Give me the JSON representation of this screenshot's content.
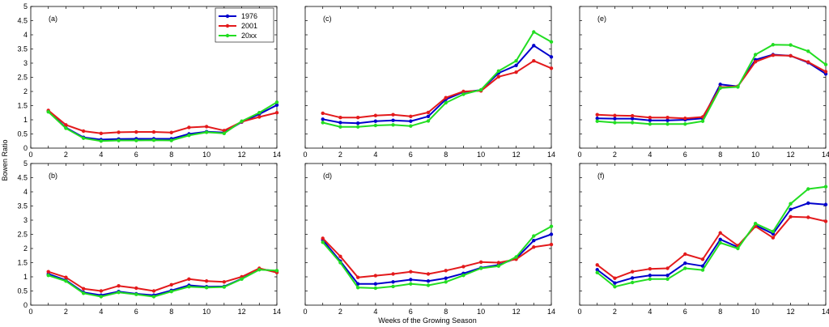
{
  "chart_data": {
    "type": "line",
    "ylabel": "Bowen Ratio",
    "xlabel": "Weeks of the Growing Season",
    "xlim": [
      0,
      14
    ],
    "ylim": [
      0,
      5
    ],
    "xticks": [
      "0",
      "2",
      "4",
      "6",
      "8",
      "10",
      "12",
      "14"
    ],
    "yticks": [
      "0",
      "0.5",
      "1",
      "1.5",
      "2",
      "2.5",
      "3",
      "3.5",
      "4",
      "4.5",
      "5"
    ],
    "legend_position": "top-right of panel (a)",
    "series_style": [
      {
        "name": "1976",
        "color": "#0000cc"
      },
      {
        "name": "2001",
        "color": "#e31a1c"
      },
      {
        "name": "20xx",
        "color": "#22dd22"
      }
    ],
    "x": [
      1,
      2,
      3,
      4,
      5,
      6,
      7,
      8,
      9,
      10,
      11,
      12,
      13,
      14
    ],
    "panels": [
      {
        "label": "(a)",
        "series": [
          {
            "name": "1976",
            "values": [
              1.3,
              0.72,
              0.38,
              0.3,
              0.32,
              0.33,
              0.33,
              0.33,
              0.5,
              0.58,
              0.55,
              0.92,
              1.2,
              1.52
            ]
          },
          {
            "name": "2001",
            "values": [
              1.33,
              0.82,
              0.6,
              0.52,
              0.56,
              0.57,
              0.57,
              0.55,
              0.73,
              0.76,
              0.62,
              0.93,
              1.1,
              1.25
            ]
          },
          {
            "name": "20xx",
            "values": [
              1.28,
              0.7,
              0.35,
              0.25,
              0.27,
              0.27,
              0.28,
              0.27,
              0.45,
              0.56,
              0.52,
              0.95,
              1.25,
              1.62
            ]
          }
        ]
      },
      {
        "label": "(c)",
        "series": [
          {
            "name": "1976",
            "values": [
              1.02,
              0.9,
              0.88,
              0.95,
              0.98,
              0.95,
              1.12,
              1.72,
              1.98,
              2.05,
              2.65,
              2.92,
              3.62,
              3.22
            ]
          },
          {
            "name": "2001",
            "values": [
              1.23,
              1.08,
              1.08,
              1.15,
              1.18,
              1.12,
              1.26,
              1.78,
              2.0,
              2.02,
              2.52,
              2.68,
              3.08,
              2.82
            ]
          },
          {
            "name": "20xx",
            "values": [
              0.9,
              0.75,
              0.75,
              0.8,
              0.82,
              0.78,
              0.96,
              1.6,
              1.9,
              2.06,
              2.72,
              3.08,
              4.1,
              3.75
            ]
          }
        ]
      },
      {
        "label": "(e)",
        "series": [
          {
            "name": "1976",
            "values": [
              1.05,
              1.04,
              1.04,
              0.98,
              0.98,
              1.0,
              1.05,
              2.25,
              2.18,
              3.12,
              3.3,
              3.26,
              3.02,
              2.62
            ]
          },
          {
            "name": "2001",
            "values": [
              1.18,
              1.15,
              1.14,
              1.08,
              1.08,
              1.05,
              1.1,
              2.15,
              2.18,
              3.05,
              3.28,
              3.26,
              3.04,
              2.7
            ]
          },
          {
            "name": "20xx",
            "values": [
              0.95,
              0.9,
              0.9,
              0.85,
              0.85,
              0.85,
              0.95,
              2.12,
              2.16,
              3.3,
              3.65,
              3.64,
              3.42,
              2.95
            ]
          }
        ]
      },
      {
        "label": "(b)",
        "series": [
          {
            "name": "1976",
            "values": [
              1.1,
              0.88,
              0.45,
              0.35,
              0.48,
              0.4,
              0.35,
              0.52,
              0.7,
              0.65,
              0.66,
              0.93,
              1.27,
              1.2
            ]
          },
          {
            "name": "2001",
            "values": [
              1.18,
              0.98,
              0.58,
              0.5,
              0.68,
              0.6,
              0.5,
              0.72,
              0.92,
              0.85,
              0.82,
              1.0,
              1.3,
              1.15
            ]
          },
          {
            "name": "20xx",
            "values": [
              1.05,
              0.85,
              0.42,
              0.3,
              0.45,
              0.38,
              0.3,
              0.48,
              0.65,
              0.62,
              0.64,
              0.92,
              1.25,
              1.22
            ]
          }
        ]
      },
      {
        "label": "(d)",
        "series": [
          {
            "name": "1976",
            "values": [
              2.3,
              1.55,
              0.75,
              0.75,
              0.82,
              0.9,
              0.85,
              0.95,
              1.12,
              1.32,
              1.42,
              1.65,
              2.28,
              2.5
            ]
          },
          {
            "name": "2001",
            "values": [
              2.36,
              1.72,
              0.98,
              1.04,
              1.1,
              1.18,
              1.1,
              1.22,
              1.36,
              1.52,
              1.5,
              1.62,
              2.05,
              2.14
            ]
          },
          {
            "name": "20xx",
            "values": [
              2.22,
              1.5,
              0.62,
              0.6,
              0.66,
              0.75,
              0.7,
              0.82,
              1.05,
              1.3,
              1.38,
              1.7,
              2.44,
              2.78
            ]
          }
        ]
      },
      {
        "label": "(f)",
        "series": [
          {
            "name": "1976",
            "values": [
              1.25,
              0.78,
              0.96,
              1.05,
              1.05,
              1.48,
              1.38,
              2.32,
              2.05,
              2.82,
              2.52,
              3.38,
              3.6,
              3.55
            ]
          },
          {
            "name": "2001",
            "values": [
              1.42,
              0.95,
              1.18,
              1.28,
              1.3,
              1.8,
              1.62,
              2.55,
              2.1,
              2.78,
              2.38,
              3.12,
              3.1,
              2.96
            ]
          },
          {
            "name": "20xx",
            "values": [
              1.15,
              0.65,
              0.8,
              0.92,
              0.92,
              1.3,
              1.24,
              2.2,
              2.0,
              2.88,
              2.6,
              3.58,
              4.1,
              4.18
            ]
          }
        ]
      }
    ]
  }
}
